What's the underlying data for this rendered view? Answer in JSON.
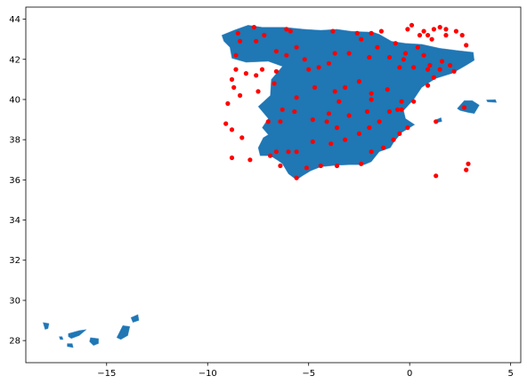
{
  "chart_data": {
    "type": "scatter",
    "title": "",
    "xlabel": "",
    "ylabel": "",
    "xlim": [
      -19,
      5.5
    ],
    "ylim": [
      26.9,
      44.6
    ],
    "xticks": [
      -15,
      -10,
      -5,
      0,
      5
    ],
    "yticks": [
      28,
      30,
      32,
      34,
      36,
      38,
      40,
      42,
      44
    ],
    "xtick_labels": [
      "−15",
      "−10",
      "−5",
      "0",
      "5"
    ],
    "ytick_labels": [
      "28",
      "30",
      "32",
      "34",
      "36",
      "38",
      "40",
      "42",
      "44"
    ],
    "grid": false,
    "layers": [
      {
        "kind": "polygons",
        "color": "#1f77b4",
        "edgecolor": "#5b9bd5",
        "shapes": [
          [
            [
              -9.3,
              43.2
            ],
            [
              -8.7,
              43.45
            ],
            [
              -8.0,
              43.7
            ],
            [
              -7.3,
              43.6
            ],
            [
              -6.2,
              43.6
            ],
            [
              -5.2,
              43.5
            ],
            [
              -4.4,
              43.45
            ],
            [
              -3.6,
              43.5
            ],
            [
              -2.9,
              43.4
            ],
            [
              -1.8,
              43.35
            ],
            [
              -1.5,
              43.25
            ],
            [
              -0.9,
              42.9
            ],
            [
              -0.2,
              42.8
            ],
            [
              0.6,
              42.75
            ],
            [
              1.5,
              42.55
            ],
            [
              2.3,
              42.45
            ],
            [
              3.15,
              42.35
            ],
            [
              3.2,
              41.95
            ],
            [
              2.8,
              41.7
            ],
            [
              2.1,
              41.3
            ],
            [
              1.3,
              41.05
            ],
            [
              0.9,
              40.8
            ],
            [
              0.6,
              40.6
            ],
            [
              0.2,
              40.0
            ],
            [
              -0.3,
              39.45
            ],
            [
              -0.2,
              39.05
            ],
            [
              0.25,
              38.75
            ],
            [
              -0.4,
              38.35
            ],
            [
              -0.8,
              37.85
            ],
            [
              -0.95,
              37.6
            ],
            [
              -1.5,
              37.4
            ],
            [
              -1.9,
              36.9
            ],
            [
              -2.25,
              36.75
            ],
            [
              -3.0,
              36.75
            ],
            [
              -3.7,
              36.72
            ],
            [
              -4.4,
              36.65
            ],
            [
              -4.9,
              36.45
            ],
            [
              -5.3,
              36.2
            ],
            [
              -5.6,
              36.0
            ],
            [
              -6.0,
              36.3
            ],
            [
              -6.3,
              36.8
            ],
            [
              -6.5,
              36.95
            ],
            [
              -6.9,
              37.2
            ],
            [
              -7.4,
              37.2
            ],
            [
              -7.5,
              37.6
            ],
            [
              -7.25,
              38.1
            ],
            [
              -7.0,
              38.25
            ],
            [
              -7.3,
              38.6
            ],
            [
              -7.0,
              39.05
            ],
            [
              -7.5,
              39.65
            ],
            [
              -6.9,
              40.2
            ],
            [
              -6.85,
              41.0
            ],
            [
              -6.3,
              41.65
            ],
            [
              -7.0,
              41.9
            ],
            [
              -8.1,
              41.85
            ],
            [
              -8.8,
              42.05
            ],
            [
              -8.9,
              42.6
            ],
            [
              -9.2,
              42.9
            ]
          ],
          [
            [
              2.35,
              39.55
            ],
            [
              2.7,
              39.95
            ],
            [
              3.1,
              39.95
            ],
            [
              3.45,
              39.72
            ],
            [
              3.2,
              39.3
            ],
            [
              2.9,
              39.35
            ],
            [
              2.5,
              39.45
            ]
          ],
          [
            [
              3.8,
              39.98
            ],
            [
              4.25,
              40.0
            ],
            [
              4.3,
              39.85
            ],
            [
              3.85,
              39.88
            ]
          ],
          [
            [
              1.2,
              38.95
            ],
            [
              1.55,
              39.1
            ],
            [
              1.6,
              38.9
            ],
            [
              1.35,
              38.85
            ]
          ],
          [
            [
              -18.15,
              28.9
            ],
            [
              -17.85,
              28.85
            ],
            [
              -17.9,
              28.6
            ],
            [
              -18.05,
              28.55
            ]
          ],
          [
            [
              -17.35,
              28.2
            ],
            [
              -17.2,
              28.2
            ],
            [
              -17.15,
              28.05
            ],
            [
              -17.3,
              28.05
            ]
          ],
          [
            [
              -16.95,
              27.85
            ],
            [
              -16.7,
              27.85
            ],
            [
              -16.65,
              27.65
            ],
            [
              -16.95,
              27.7
            ]
          ],
          [
            [
              -16.9,
              28.35
            ],
            [
              -16.35,
              28.5
            ],
            [
              -16.0,
              28.55
            ],
            [
              -16.35,
              28.25
            ],
            [
              -16.75,
              28.1
            ],
            [
              -16.9,
              28.2
            ]
          ],
          [
            [
              -15.8,
              28.15
            ],
            [
              -15.4,
              28.1
            ],
            [
              -15.4,
              27.85
            ],
            [
              -15.65,
              27.75
            ],
            [
              -15.85,
              27.95
            ]
          ],
          [
            [
              -14.5,
              28.15
            ],
            [
              -14.2,
              28.75
            ],
            [
              -13.85,
              28.7
            ],
            [
              -13.95,
              28.25
            ],
            [
              -14.3,
              28.05
            ]
          ],
          [
            [
              -13.8,
              29.15
            ],
            [
              -13.45,
              29.3
            ],
            [
              -13.4,
              29.0
            ],
            [
              -13.7,
              28.9
            ]
          ]
        ]
      },
      {
        "kind": "points",
        "color": "#ff0000",
        "points": [
          [
            -8.5,
            43.3
          ],
          [
            -7.7,
            43.6
          ],
          [
            -6.1,
            43.5
          ],
          [
            -5.9,
            43.4
          ],
          [
            -3.8,
            43.4
          ],
          [
            -2.6,
            43.3
          ],
          [
            -1.9,
            43.3
          ],
          [
            -1.4,
            43.4
          ],
          [
            -0.1,
            43.5
          ],
          [
            0.1,
            43.7
          ],
          [
            0.7,
            43.4
          ],
          [
            1.2,
            43.5
          ],
          [
            1.5,
            43.6
          ],
          [
            1.8,
            43.5
          ],
          [
            2.3,
            43.4
          ],
          [
            2.6,
            43.2
          ],
          [
            2.8,
            42.7
          ],
          [
            0.5,
            43.2
          ],
          [
            0.9,
            43.2
          ],
          [
            1.1,
            43.0
          ],
          [
            1.8,
            43.2
          ],
          [
            -2.4,
            43.0
          ],
          [
            -1.6,
            42.6
          ],
          [
            -0.7,
            42.8
          ],
          [
            -0.2,
            42.3
          ],
          [
            0.4,
            42.6
          ],
          [
            0.7,
            42.2
          ],
          [
            1.0,
            41.7
          ],
          [
            1.6,
            41.9
          ],
          [
            2.0,
            41.7
          ],
          [
            2.2,
            41.4
          ],
          [
            1.5,
            41.5
          ],
          [
            0.9,
            41.5
          ],
          [
            0.2,
            41.6
          ],
          [
            -0.5,
            41.6
          ],
          [
            -0.3,
            42.0
          ],
          [
            -1.0,
            42.1
          ],
          [
            -2.0,
            42.1
          ],
          [
            -3.0,
            42.3
          ],
          [
            -3.7,
            42.3
          ],
          [
            -4.0,
            41.8
          ],
          [
            -4.5,
            41.6
          ],
          [
            -5.0,
            41.5
          ],
          [
            -5.2,
            42.0
          ],
          [
            -5.6,
            42.6
          ],
          [
            -6.1,
            42.2
          ],
          [
            -6.6,
            42.4
          ],
          [
            -7.2,
            43.2
          ],
          [
            -7.6,
            42.9
          ],
          [
            -8.4,
            42.9
          ],
          [
            -8.6,
            42.2
          ],
          [
            -8.1,
            41.3
          ],
          [
            -7.6,
            41.2
          ],
          [
            -7.3,
            41.5
          ],
          [
            -6.6,
            41.4
          ],
          [
            -6.7,
            40.8
          ],
          [
            -7.5,
            40.4
          ],
          [
            -8.4,
            40.2
          ],
          [
            -8.7,
            40.6
          ],
          [
            -8.8,
            41.0
          ],
          [
            -8.6,
            41.5
          ],
          [
            -9.0,
            39.8
          ],
          [
            -9.1,
            38.8
          ],
          [
            -8.8,
            38.5
          ],
          [
            -8.3,
            38.1
          ],
          [
            -8.8,
            37.1
          ],
          [
            -7.9,
            37.0
          ],
          [
            -6.9,
            37.2
          ],
          [
            -6.4,
            36.7
          ],
          [
            -6.0,
            37.4
          ],
          [
            -5.6,
            36.1
          ],
          [
            -5.1,
            36.6
          ],
          [
            -4.4,
            36.7
          ],
          [
            -3.6,
            36.7
          ],
          [
            -2.4,
            36.8
          ],
          [
            -1.9,
            37.4
          ],
          [
            -1.3,
            37.6
          ],
          [
            -0.8,
            38.0
          ],
          [
            -0.5,
            38.3
          ],
          [
            -0.1,
            38.6
          ],
          [
            0.2,
            39.9
          ],
          [
            -0.4,
            39.5
          ],
          [
            -1.0,
            39.4
          ],
          [
            -1.5,
            38.9
          ],
          [
            -2.0,
            38.6
          ],
          [
            -2.5,
            38.3
          ],
          [
            -3.2,
            38.0
          ],
          [
            -3.9,
            37.8
          ],
          [
            -4.8,
            37.9
          ],
          [
            -5.6,
            37.4
          ],
          [
            -6.6,
            37.4
          ],
          [
            -7.0,
            38.9
          ],
          [
            -6.3,
            39.5
          ],
          [
            -5.6,
            40.1
          ],
          [
            -4.7,
            40.6
          ],
          [
            -3.7,
            40.4
          ],
          [
            -3.2,
            40.6
          ],
          [
            -2.5,
            40.9
          ],
          [
            -1.9,
            40.3
          ],
          [
            -1.1,
            40.5
          ],
          [
            -0.6,
            39.5
          ],
          [
            -0.4,
            39.9
          ],
          [
            0.9,
            40.7
          ],
          [
            1.2,
            41.1
          ],
          [
            -3.5,
            39.9
          ],
          [
            -4.0,
            39.3
          ],
          [
            -4.1,
            38.9
          ],
          [
            -3.6,
            38.6
          ],
          [
            -4.8,
            39.0
          ],
          [
            -3.0,
            39.2
          ],
          [
            -2.1,
            39.4
          ],
          [
            -1.9,
            40.0
          ],
          [
            -5.7,
            39.4
          ],
          [
            -6.4,
            38.9
          ],
          [
            2.7,
            39.6
          ],
          [
            2.9,
            36.8
          ],
          [
            2.8,
            36.5
          ],
          [
            1.3,
            36.2
          ],
          [
            1.3,
            38.9
          ]
        ]
      }
    ]
  }
}
